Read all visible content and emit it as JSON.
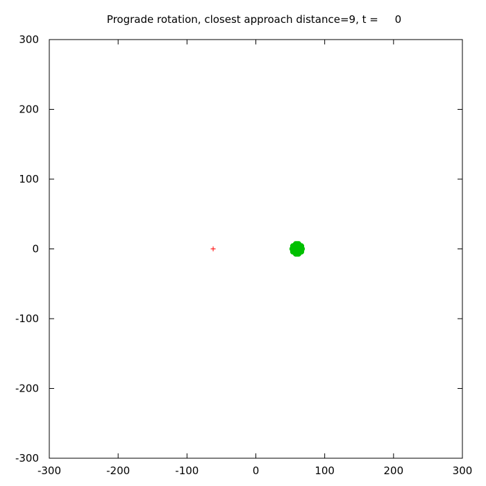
{
  "chart_data": {
    "type": "scatter",
    "title": "Prograde rotation, closest approach distance=9, t =     0",
    "xlabel": "",
    "ylabel": "",
    "xlim": [
      -300,
      300
    ],
    "ylim": [
      -300,
      300
    ],
    "xticks": [
      -300,
      -200,
      -100,
      0,
      100,
      200,
      300
    ],
    "yticks": [
      -300,
      -200,
      -100,
      0,
      100,
      200,
      300
    ],
    "grid": false,
    "series": [
      {
        "color": "#ff0000",
        "marker": "plus",
        "points": [
          [
            -62,
            0
          ]
        ]
      },
      {
        "color": "#00c000",
        "marker": "cluster",
        "points": [
          [
            59,
            0
          ],
          [
            60,
            0
          ],
          [
            61,
            0
          ],
          [
            62,
            0
          ],
          [
            58,
            0
          ],
          [
            63,
            0
          ],
          [
            57,
            0
          ],
          [
            64,
            0
          ],
          [
            60,
            3
          ],
          [
            60,
            -3
          ],
          [
            60,
            5
          ],
          [
            60,
            -5
          ],
          [
            60,
            7
          ],
          [
            60,
            -7
          ],
          [
            56,
            3
          ],
          [
            64,
            3
          ],
          [
            56,
            -3
          ],
          [
            64,
            -3
          ],
          [
            57,
            5
          ],
          [
            63,
            5
          ],
          [
            57,
            -5
          ],
          [
            63,
            -5
          ],
          [
            58,
            7
          ],
          [
            62,
            7
          ],
          [
            58,
            -7
          ],
          [
            62,
            -7
          ],
          [
            55,
            1
          ],
          [
            65,
            1
          ],
          [
            55,
            -1
          ],
          [
            65,
            -1
          ],
          [
            54,
            4
          ],
          [
            66,
            4
          ],
          [
            54,
            -4
          ],
          [
            66,
            -4
          ],
          [
            53,
            0
          ],
          [
            67,
            0
          ]
        ]
      }
    ]
  }
}
